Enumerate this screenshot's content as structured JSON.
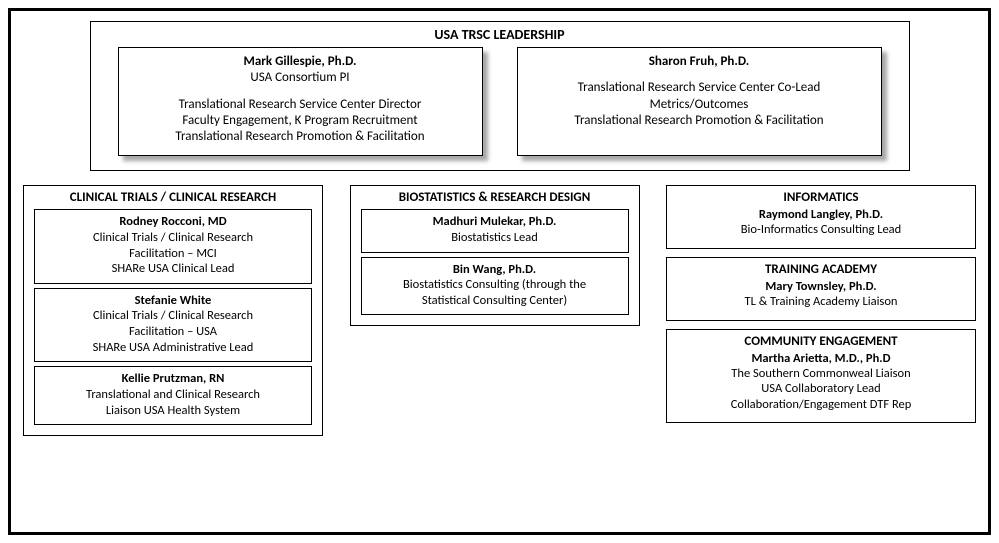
{
  "colors": {
    "border": "#000000",
    "background": "#ffffff",
    "shadow": "rgba(0,0,0,0.35)"
  },
  "type": "org-chart",
  "top": {
    "title": "USA TRSC LEADERSHIP",
    "leaders": [
      {
        "name": "Mark Gillespie, Ph.D.",
        "role": "USA Consortium PI",
        "line1": "Translational Research Service Center Director",
        "line2": "Faculty Engagement, K Program Recruitment",
        "line3": "Translational Research Promotion & Facilitation"
      },
      {
        "name": "Sharon Fruh, Ph.D.",
        "role": "",
        "line1": "Translational Research Service Center Co-Lead",
        "line2": "Metrics/Outcomes",
        "line3": "Translational Research Promotion &  Facilitation"
      }
    ]
  },
  "left": {
    "title": "CLINICAL TRIALS / CLINICAL RESEARCH",
    "people": [
      {
        "name": "Rodney Rocconi, MD",
        "l1": "Clinical Trials / Clinical Research",
        "l2": "Facilitation – MCI",
        "l3": "SHARe USA  Clinical Lead"
      },
      {
        "name": "Stefanie White",
        "l1": "Clinical Trials / Clinical Research",
        "l2": "Facilitation – USA",
        "l3": "SHARe USA Administrative Lead"
      },
      {
        "name": "Kellie Prutzman, RN",
        "l1": "Translational and Clinical Research",
        "l2": "Liaison USA Health System",
        "l3": ""
      }
    ]
  },
  "mid": {
    "title": "BIOSTATISTICS & RESEARCH DESIGN",
    "people": [
      {
        "name": "Madhuri Mulekar, Ph.D.",
        "l1": "Biostatistics Lead",
        "l2": "",
        "l3": ""
      },
      {
        "name": "Bin Wang, Ph.D.",
        "l1": "Biostatistics Consulting (through the",
        "l2": "Statistical Consulting Center)",
        "l3": ""
      }
    ]
  },
  "right": {
    "boxes": [
      {
        "title": "INFORMATICS",
        "name": "Raymond Langley, Ph.D.",
        "l1": "Bio-Informatics Consulting Lead",
        "l2": "",
        "l3": ""
      },
      {
        "title": "TRAINING ACADEMY",
        "name": "Mary Townsley, Ph.D.",
        "l1": "TL & Training Academy Liaison",
        "l2": "",
        "l3": ""
      },
      {
        "title": "COMMUNITY ENGAGEMENT",
        "name": "Martha Arietta, M.D., Ph.D",
        "l1": "The Southern Commonweal Liaison",
        "l2": "USA Collaboratory Lead",
        "l3": "Collaboration/Engagement DTF Rep"
      }
    ]
  }
}
